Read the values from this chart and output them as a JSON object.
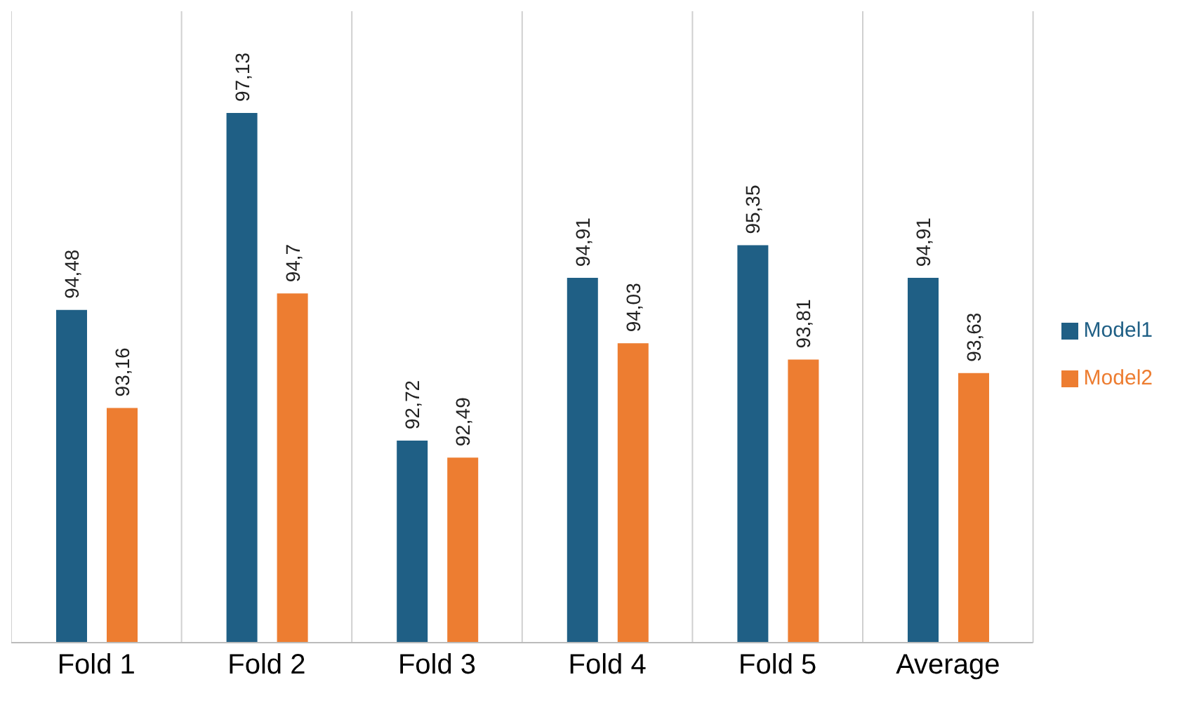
{
  "chart_data": {
    "type": "bar",
    "categories": [
      "Fold 1",
      "Fold 2",
      "Fold 3",
      "Fold 4",
      "Fold 5",
      "Average"
    ],
    "series": [
      {
        "name": "Model1",
        "color": "#1f5f85",
        "values": [
          94.48,
          97.13,
          92.72,
          94.91,
          95.35,
          94.91
        ],
        "value_labels": [
          "94,48",
          "97,13",
          "92,72",
          "94,91",
          "95,35",
          "94,91"
        ]
      },
      {
        "name": "Model2",
        "color": "#ed7d31",
        "values": [
          93.16,
          94.7,
          92.49,
          94.03,
          93.81,
          93.63
        ],
        "value_labels": [
          "93,16",
          "94,7",
          "92,49",
          "94,03",
          "93,81",
          "93,63"
        ]
      }
    ],
    "ylim": [
      90,
      98.5
    ],
    "grid": "x",
    "legend": "right"
  }
}
